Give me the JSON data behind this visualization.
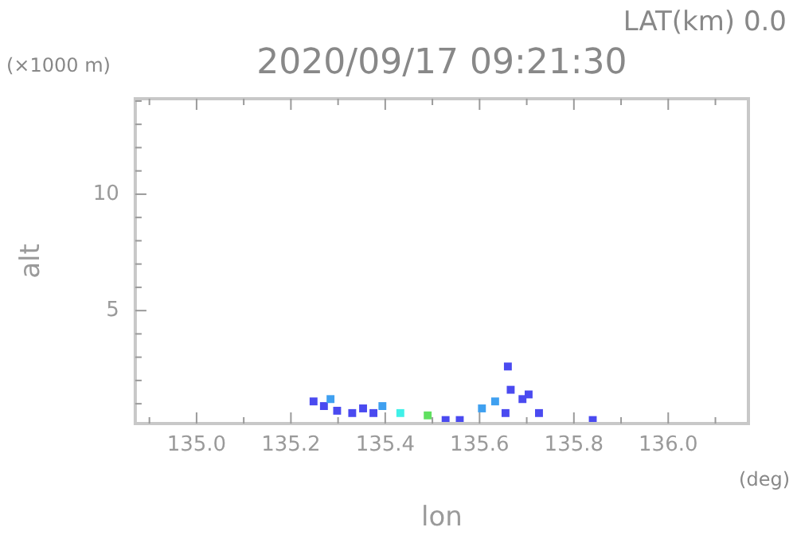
{
  "chart_data": {
    "type": "scatter",
    "title": "2020/09/17 09:21:30",
    "xlabel": "lon",
    "ylabel": "alt",
    "annotations": [
      "LAT(km) 0.0",
      "(×1000 m)",
      "(deg)"
    ],
    "x": [
      135.248,
      135.27,
      135.284,
      135.298,
      135.33,
      135.353,
      135.375,
      135.394,
      135.432,
      135.49,
      135.528,
      135.558,
      135.605,
      135.633,
      135.655,
      135.66,
      135.666,
      135.691,
      135.704,
      135.726,
      135.84
    ],
    "values": [
      1.1,
      0.9,
      1.2,
      0.7,
      0.6,
      0.8,
      0.6,
      0.9,
      0.6,
      0.5,
      0.3,
      0.3,
      0.8,
      1.1,
      0.6,
      2.6,
      1.6,
      1.2,
      1.4,
      0.6,
      0.3
    ],
    "colors": [
      "#4a4af0",
      "#4a4af0",
      "#3fa0f0",
      "#4a4af0",
      "#4a4af0",
      "#4a4af0",
      "#4a4af0",
      "#3fa0f0",
      "#40f0e8",
      "#60e060",
      "#4a4af0",
      "#4a4af0",
      "#3fa0f0",
      "#3fa0f0",
      "#4a4af0",
      "#4a4af0",
      "#4a4af0",
      "#4a4af0",
      "#4a4af0",
      "#4a4af0",
      "#4a4af0"
    ],
    "marker": "square",
    "grid": false,
    "legend": false,
    "xlim": [
      134.87,
      136.17
    ],
    "ylim": [
      0.15,
      14.1
    ],
    "xticks": [
      {
        "value": 134.9,
        "label": null
      },
      {
        "value": 135,
        "label": "135.0"
      },
      {
        "value": 135.1,
        "label": null
      },
      135.2,
      {
        "value": 135.3,
        "label": null
      },
      135.4,
      {
        "value": 135.5,
        "label": null
      },
      135.6,
      {
        "value": 135.7,
        "label": null
      },
      135.8,
      {
        "value": 135.9,
        "label": null
      },
      {
        "value": 136,
        "label": "136.0"
      },
      {
        "value": 136.1,
        "label": null
      }
    ],
    "yticks": [
      {
        "value": 1,
        "label": null
      },
      {
        "value": 2,
        "label": null
      },
      {
        "value": 3,
        "label": null
      },
      {
        "value": 4,
        "label": null
      },
      5,
      {
        "value": 6,
        "label": null
      },
      {
        "value": 7,
        "label": null
      },
      {
        "value": 8,
        "label": null
      },
      {
        "value": 9,
        "label": null
      },
      10,
      {
        "value": 11,
        "label": null
      },
      {
        "value": 12,
        "label": null
      },
      {
        "value": 13,
        "label": null
      },
      {
        "value": 14,
        "label": null
      }
    ]
  }
}
